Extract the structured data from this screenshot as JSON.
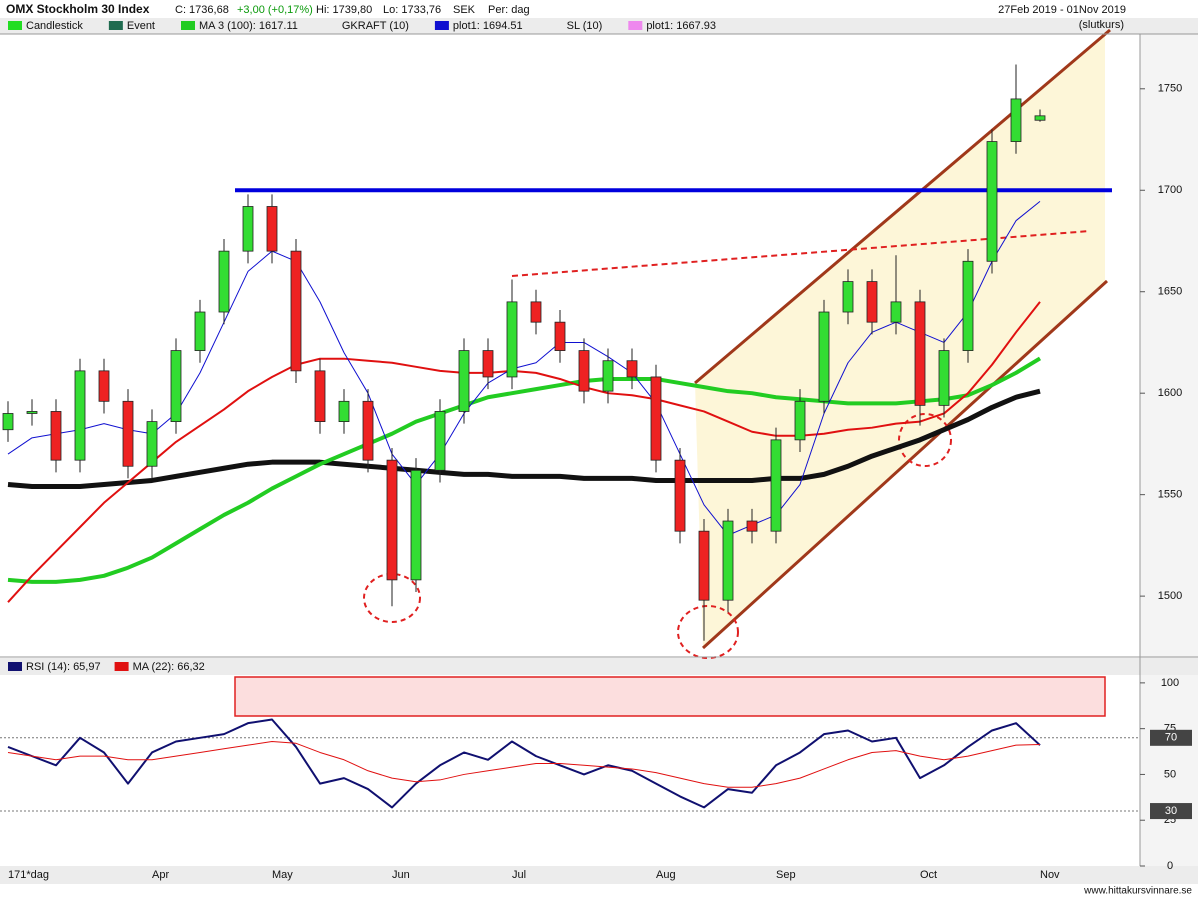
{
  "header": {
    "title": "OMX Stockholm 30 Index",
    "close": "C: 1736,68",
    "change": "+3,00 (+0,17%)",
    "high": "Hi: 1739,80",
    "low": "Lo: 1733,76",
    "currency": "SEK",
    "period": "Per: dag",
    "range": "27Feb 2019 - 01Nov 2019",
    "note": "(slutkurs)"
  },
  "footer": {
    "bars": "171*dag",
    "site": "www.hittakursvinnare.se"
  },
  "chart_data": [
    {
      "type": "candlestick",
      "legend": [
        {
          "label": "Candlestick",
          "color": "#22dd22"
        },
        {
          "label": "Event",
          "color": "#1f6b4f"
        },
        {
          "label": "MA 3 (100): 1617.11",
          "color": "#22cc22"
        },
        {
          "label": "GKRAFT (10)"
        },
        {
          "label": "plot1: 1694.51",
          "color": "#1010d0"
        },
        {
          "label": "SL (10)"
        },
        {
          "label": "plot1: 1667.93",
          "color": "#ee88ee"
        }
      ],
      "open": [
        1582,
        1590,
        1591,
        1567,
        1611,
        1596,
        1564,
        1586,
        1621,
        1640,
        1670,
        1692,
        1670,
        1611,
        1586,
        1596,
        1567,
        1508,
        1562,
        1591,
        1621,
        1608,
        1645,
        1635,
        1621,
        1601,
        1616,
        1608,
        1567,
        1532,
        1498,
        1537,
        1532,
        1577,
        1596,
        1640,
        1655,
        1635,
        1645,
        1594,
        1621,
        1665,
        1724,
        1734.5
      ],
      "high": [
        1596,
        1597,
        1597,
        1617,
        1617,
        1602,
        1592,
        1627,
        1646,
        1676,
        1698,
        1698,
        1676,
        1617,
        1602,
        1602,
        1573,
        1568,
        1597,
        1627,
        1627,
        1656,
        1651,
        1641,
        1627,
        1622,
        1622,
        1614,
        1573,
        1538,
        1543,
        1543,
        1583,
        1602,
        1646,
        1661,
        1661,
        1668,
        1651,
        1627,
        1671,
        1730,
        1762,
        1739.8
      ],
      "low": [
        1576,
        1584,
        1561,
        1561,
        1590,
        1558,
        1558,
        1580,
        1615,
        1634,
        1664,
        1664,
        1605,
        1580,
        1580,
        1561,
        1495,
        1502,
        1556,
        1585,
        1602,
        1602,
        1629,
        1615,
        1595,
        1595,
        1602,
        1561,
        1526,
        1478,
        1492,
        1526,
        1526,
        1571,
        1590,
        1634,
        1629,
        1629,
        1584,
        1588,
        1615,
        1659,
        1718,
        1733.76
      ],
      "close": [
        1590,
        1591,
        1567,
        1611,
        1596,
        1564,
        1586,
        1621,
        1640,
        1670,
        1692,
        1670,
        1611,
        1586,
        1596,
        1567,
        1508,
        1562,
        1591,
        1621,
        1608,
        1645,
        1635,
        1621,
        1601,
        1616,
        1608,
        1567,
        1532,
        1498,
        1537,
        1532,
        1577,
        1596,
        1640,
        1655,
        1635,
        1645,
        1594,
        1621,
        1665,
        1724,
        1745,
        1736.68
      ],
      "up_color": "#33dd33",
      "down_color": "#ee2222",
      "series": [
        {
          "color": "#111111",
          "width": 5,
          "values": [
            1555,
            1554,
            1554,
            1554,
            1555,
            1556,
            1557,
            1559,
            1561,
            1563,
            1565,
            1566,
            1566,
            1566,
            1565,
            1564,
            1563,
            1562,
            1561,
            1560,
            1560,
            1559,
            1559,
            1559,
            1558,
            1558,
            1558,
            1557,
            1557,
            1557,
            1557,
            1557,
            1558,
            1558,
            1560,
            1564,
            1569,
            1573,
            1577,
            1582,
            1587,
            1593,
            1598,
            1601
          ]
        },
        {
          "color": "#22cc22",
          "width": 4,
          "values": [
            1508,
            1507,
            1507,
            1508,
            1510,
            1514,
            1519,
            1526,
            1533,
            1540,
            1546,
            1553,
            1559,
            1565,
            1570,
            1575,
            1580,
            1586,
            1590,
            1594,
            1598,
            1600,
            1602,
            1604,
            1606,
            1607,
            1607,
            1607,
            1605,
            1603,
            1601,
            1600,
            1598,
            1597,
            1596,
            1595,
            1595,
            1595,
            1596,
            1597,
            1599,
            1604,
            1610,
            1617.11
          ]
        },
        {
          "color": "#e01010",
          "width": 2,
          "values": [
            1497,
            1510,
            1522,
            1534,
            1546,
            1556,
            1566,
            1576,
            1584,
            1592,
            1601,
            1608,
            1614,
            1617,
            1617,
            1616,
            1615,
            1613,
            1611,
            1610,
            1610,
            1611,
            1610,
            1607,
            1603,
            1600,
            1599,
            1597,
            1594,
            1591,
            1586,
            1581,
            1579,
            1579,
            1580,
            1582,
            1583,
            1585,
            1586,
            1590,
            1600,
            1614,
            1630,
            1645
          ]
        },
        {
          "color": "#1010d0",
          "width": 1,
          "values": [
            1570,
            1578,
            1580,
            1582,
            1585,
            1582,
            1580,
            1590,
            1610,
            1635,
            1660,
            1670,
            1665,
            1645,
            1620,
            1600,
            1570,
            1555,
            1570,
            1590,
            1605,
            1612,
            1615,
            1625,
            1625,
            1618,
            1610,
            1595,
            1570,
            1545,
            1530,
            1535,
            1540,
            1555,
            1590,
            1615,
            1630,
            1635,
            1630,
            1625,
            1640,
            1665,
            1685,
            1694.51
          ]
        }
      ],
      "levels": [
        1700
      ],
      "level_color": "#0000dd",
      "ylim": [
        1470,
        1777
      ],
      "yticks": [
        1500,
        1550,
        1600,
        1650,
        1700,
        1750
      ]
    },
    {
      "type": "line",
      "categories": [
        null,
        null,
        null,
        null,
        null,
        null,
        "Apr",
        null,
        null,
        null,
        null,
        "May",
        null,
        null,
        null,
        null,
        "Jun",
        null,
        null,
        null,
        null,
        "Jul",
        null,
        null,
        null,
        null,
        null,
        "Aug",
        null,
        null,
        null,
        null,
        "Sep",
        null,
        null,
        null,
        null,
        null,
        "Oct",
        null,
        null,
        null,
        null,
        "Nov"
      ],
      "series": [
        {
          "name": "RSI (14): 65,97",
          "color": "#101070",
          "width": 2,
          "values": [
            65,
            60,
            55,
            70,
            62,
            45,
            62,
            68,
            70,
            72,
            78,
            80,
            65,
            45,
            48,
            42,
            32,
            45,
            55,
            62,
            58,
            68,
            60,
            55,
            50,
            55,
            52,
            45,
            38,
            32,
            42,
            40,
            55,
            62,
            72,
            74,
            68,
            70,
            48,
            55,
            65,
            74,
            78,
            65.97
          ]
        },
        {
          "name": "MA (22): 66,32",
          "color": "#e01010",
          "width": 1,
          "values": [
            62,
            60,
            58,
            60,
            60,
            58,
            58,
            60,
            62,
            64,
            66,
            68,
            67,
            62,
            58,
            52,
            48,
            46,
            47,
            50,
            52,
            54,
            56,
            56,
            55,
            54,
            53,
            51,
            48,
            45,
            43,
            43,
            45,
            48,
            53,
            58,
            62,
            63,
            60,
            58,
            60,
            63,
            66,
            66.32
          ]
        }
      ],
      "levels": [
        70,
        30
      ],
      "ylim": [
        0,
        104.3
      ],
      "yticks": [
        0,
        25,
        50,
        75,
        100
      ]
    }
  ]
}
